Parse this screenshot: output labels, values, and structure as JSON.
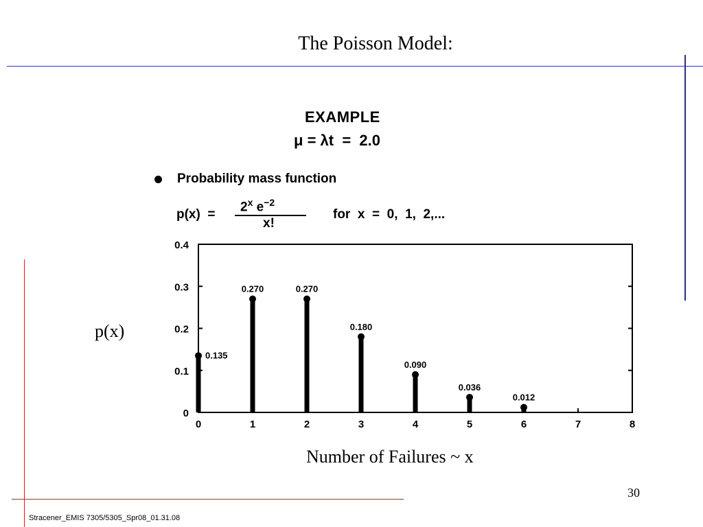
{
  "slide": {
    "title": "The Poisson Model:",
    "example_heading": "EXAMPLE",
    "mu_equation": "μ = λt  =  2.0",
    "bullet_text": "Probability mass function",
    "pmf_lhs": "p(x)  =",
    "pmf_numerator_base": "2",
    "pmf_numerator_exp1": "x",
    "pmf_numerator_e": "e",
    "pmf_numerator_exp2": "−2",
    "pmf_denominator": "x!",
    "pmf_domain": "for  x  =  0,  1,  2,...",
    "y_axis_label": "p(x)",
    "x_axis_label": "Number of Failures ~ x",
    "slide_number": "30",
    "footer": "Stracener_EMIS 7305/5305_Spr08_01.31.08"
  },
  "chart_data": {
    "type": "bar",
    "x": [
      0,
      1,
      2,
      3,
      4,
      5,
      6,
      7
    ],
    "values": [
      0.135,
      0.27,
      0.27,
      0.18,
      0.09,
      0.036,
      0.012,
      0.0
    ],
    "value_labels": [
      "0.135",
      "0.270",
      "0.270",
      "0.180",
      "0.090",
      "0.036",
      "0.012",
      ""
    ],
    "xticks": [
      "0",
      "1",
      "2",
      "3",
      "4",
      "5",
      "6",
      "7",
      "8"
    ],
    "yticks": [
      "0",
      "0.1",
      "0.2",
      "0.3",
      "0.4"
    ],
    "xlim": [
      0,
      8
    ],
    "ylim": [
      0,
      0.4
    ],
    "xlabel": "Number of Failures ~ x",
    "ylabel": "p(x)",
    "grid": false
  }
}
